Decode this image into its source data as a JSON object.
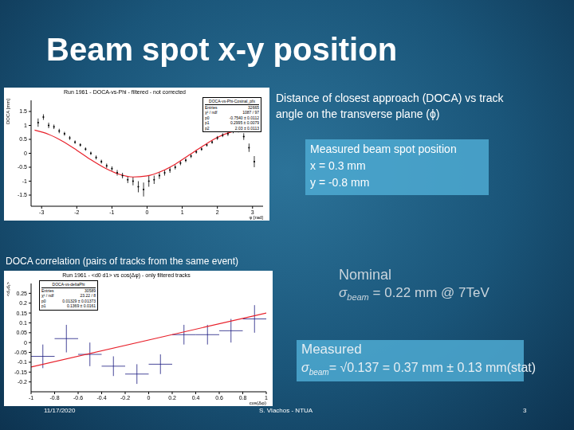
{
  "title": "Beam spot x-y position",
  "texts": {
    "doca_desc": "Distance of closest approach (DOCA) vs track angle on the transverse plane (ϕ)",
    "measured_pos_title": "Measured beam spot position",
    "measured_pos_x": "x = 0.3 mm",
    "measured_pos_y": "y = -0.8 mm",
    "correlation_caption": "DOCA correlation (pairs of tracks from the same event)",
    "nominal_label": "Nominal",
    "nominal_symbol": "σ",
    "nominal_sub": "beam",
    "nominal_text": " = 0.22 mm @ 7TeV",
    "measured_label": "Measured",
    "measured_symbol": "σ",
    "measured_sub": "beam",
    "measured_text": "= √0.137 = 0.37 mm ± 0.13 mm(stat)"
  },
  "footer": {
    "date": "11/17/2020",
    "author": "S. Vlachos - NTUA",
    "page": "3"
  },
  "chart_data": [
    {
      "type": "scatter",
      "title": "Run 1961 - DOCA-vs-Phi - filtered - not corrected",
      "x_label": "φ [rad]",
      "y_label": "DOCA [mm]",
      "xlim": [
        -3.3,
        3.3
      ],
      "xticks": [
        -3,
        -2,
        -1,
        0,
        1,
        2,
        3
      ],
      "ylim": [
        -1.9,
        1.9
      ],
      "yticks": [
        -1.5,
        -1,
        -0.5,
        0,
        0.5,
        1,
        1.5
      ],
      "stats": {
        "name": "DOCA-vs-Phi-Cosinal_pfx",
        "rows": [
          [
            "Entries",
            "32665"
          ],
          [
            "χ² / ndf",
            "1087 / 97"
          ],
          [
            "p0",
            "-0.7540 ± 0.0112"
          ],
          [
            "p1",
            "0.2995 ± 0.0079"
          ],
          [
            "p2",
            "2.03 ± 0.0113"
          ]
        ]
      },
      "series": [
        {
          "type": "scatter",
          "color": "#000000",
          "marker": "point",
          "x": [
            -3.1,
            -2.95,
            -2.8,
            -2.65,
            -2.5,
            -2.35,
            -2.2,
            -2.05,
            -1.9,
            -1.75,
            -1.6,
            -1.45,
            -1.3,
            -1.15,
            -1.0,
            -0.85,
            -0.7,
            -0.55,
            -0.4,
            -0.25,
            -0.1,
            0.05,
            0.2,
            0.35,
            0.5,
            0.65,
            0.8,
            0.95,
            1.1,
            1.25,
            1.4,
            1.55,
            1.7,
            1.85,
            2.0,
            2.15,
            2.3,
            2.45,
            2.6,
            2.75,
            2.9,
            3.05
          ],
          "values": [
            1.1,
            1.3,
            1.0,
            0.95,
            0.8,
            0.7,
            0.55,
            0.4,
            0.3,
            0.15,
            0.0,
            -0.15,
            -0.3,
            -0.45,
            -0.55,
            -0.7,
            -0.8,
            -0.95,
            -1.0,
            -1.2,
            -1.3,
            -1.0,
            -0.95,
            -0.8,
            -0.7,
            -0.6,
            -0.5,
            -0.35,
            -0.25,
            -0.1,
            0.05,
            0.15,
            0.3,
            0.4,
            0.55,
            0.65,
            0.7,
            0.8,
            0.85,
            0.6,
            0.2,
            -0.3
          ],
          "errors": [
            0.15,
            0.1,
            0.1,
            0.08,
            0.08,
            0.07,
            0.07,
            0.06,
            0.06,
            0.06,
            0.06,
            0.07,
            0.07,
            0.08,
            0.08,
            0.1,
            0.1,
            0.12,
            0.15,
            0.2,
            0.25,
            0.2,
            0.15,
            0.12,
            0.1,
            0.1,
            0.08,
            0.08,
            0.07,
            0.07,
            0.06,
            0.06,
            0.06,
            0.06,
            0.07,
            0.07,
            0.08,
            0.08,
            0.1,
            0.12,
            0.15,
            0.2
          ]
        },
        {
          "type": "line",
          "color": "#e8202a",
          "x": [
            -3.2,
            -2.8,
            -2.4,
            -2.0,
            -1.6,
            -1.2,
            -0.8,
            -0.4,
            0,
            0.4,
            0.8,
            1.2,
            1.6,
            2.0,
            2.4,
            2.8,
            3.2
          ],
          "values": [
            0.83,
            0.68,
            0.43,
            0.11,
            -0.23,
            -0.53,
            -0.75,
            -0.85,
            -0.81,
            -0.65,
            -0.39,
            -0.06,
            0.27,
            0.57,
            0.77,
            0.85,
            0.8
          ]
        }
      ]
    },
    {
      "type": "scatter",
      "title": "Run 1961 - <d0 d1> vs cos(Δφ) - only filtered tracks",
      "x_label": "cos(Δφ)",
      "y_label": "<d₀d₁>",
      "xlim": [
        -1,
        1
      ],
      "xticks": [
        -1,
        -0.8,
        -0.6,
        -0.4,
        -0.2,
        0,
        0.2,
        0.4,
        0.6,
        0.8,
        1
      ],
      "ylim": [
        -0.25,
        0.3
      ],
      "yticks": [
        -0.2,
        -0.15,
        -0.1,
        -0.05,
        0,
        0.05,
        0.1,
        0.15,
        0.2,
        0.25
      ],
      "stats": {
        "name": "DOCA-vs-deltaPhi",
        "rows": [
          [
            "Entries",
            "30589"
          ],
          [
            "χ² / ndf",
            "23.22 / 8"
          ],
          [
            "p0",
            "0.01329 ± 0.01373"
          ],
          [
            "p1",
            "0.1369 ± 0.0161"
          ]
        ]
      },
      "series": [
        {
          "type": "scatter",
          "color": "#1a1a80",
          "marker": "none",
          "x": [
            -0.9,
            -0.7,
            -0.5,
            -0.3,
            -0.1,
            0.1,
            0.3,
            0.5,
            0.7,
            0.9
          ],
          "values": [
            -0.07,
            0.02,
            -0.06,
            -0.12,
            -0.16,
            -0.11,
            0.04,
            0.04,
            0.06,
            0.12
          ],
          "errors": [
            0.06,
            0.07,
            0.06,
            0.05,
            0.05,
            0.05,
            0.05,
            0.05,
            0.06,
            0.07
          ],
          "x_errors": [
            0.1,
            0.1,
            0.1,
            0.1,
            0.1,
            0.1,
            0.1,
            0.1,
            0.1,
            0.1
          ]
        },
        {
          "type": "line",
          "color": "#e8202a",
          "x": [
            -1,
            1
          ],
          "values": [
            -0.124,
            0.15
          ]
        }
      ]
    }
  ]
}
